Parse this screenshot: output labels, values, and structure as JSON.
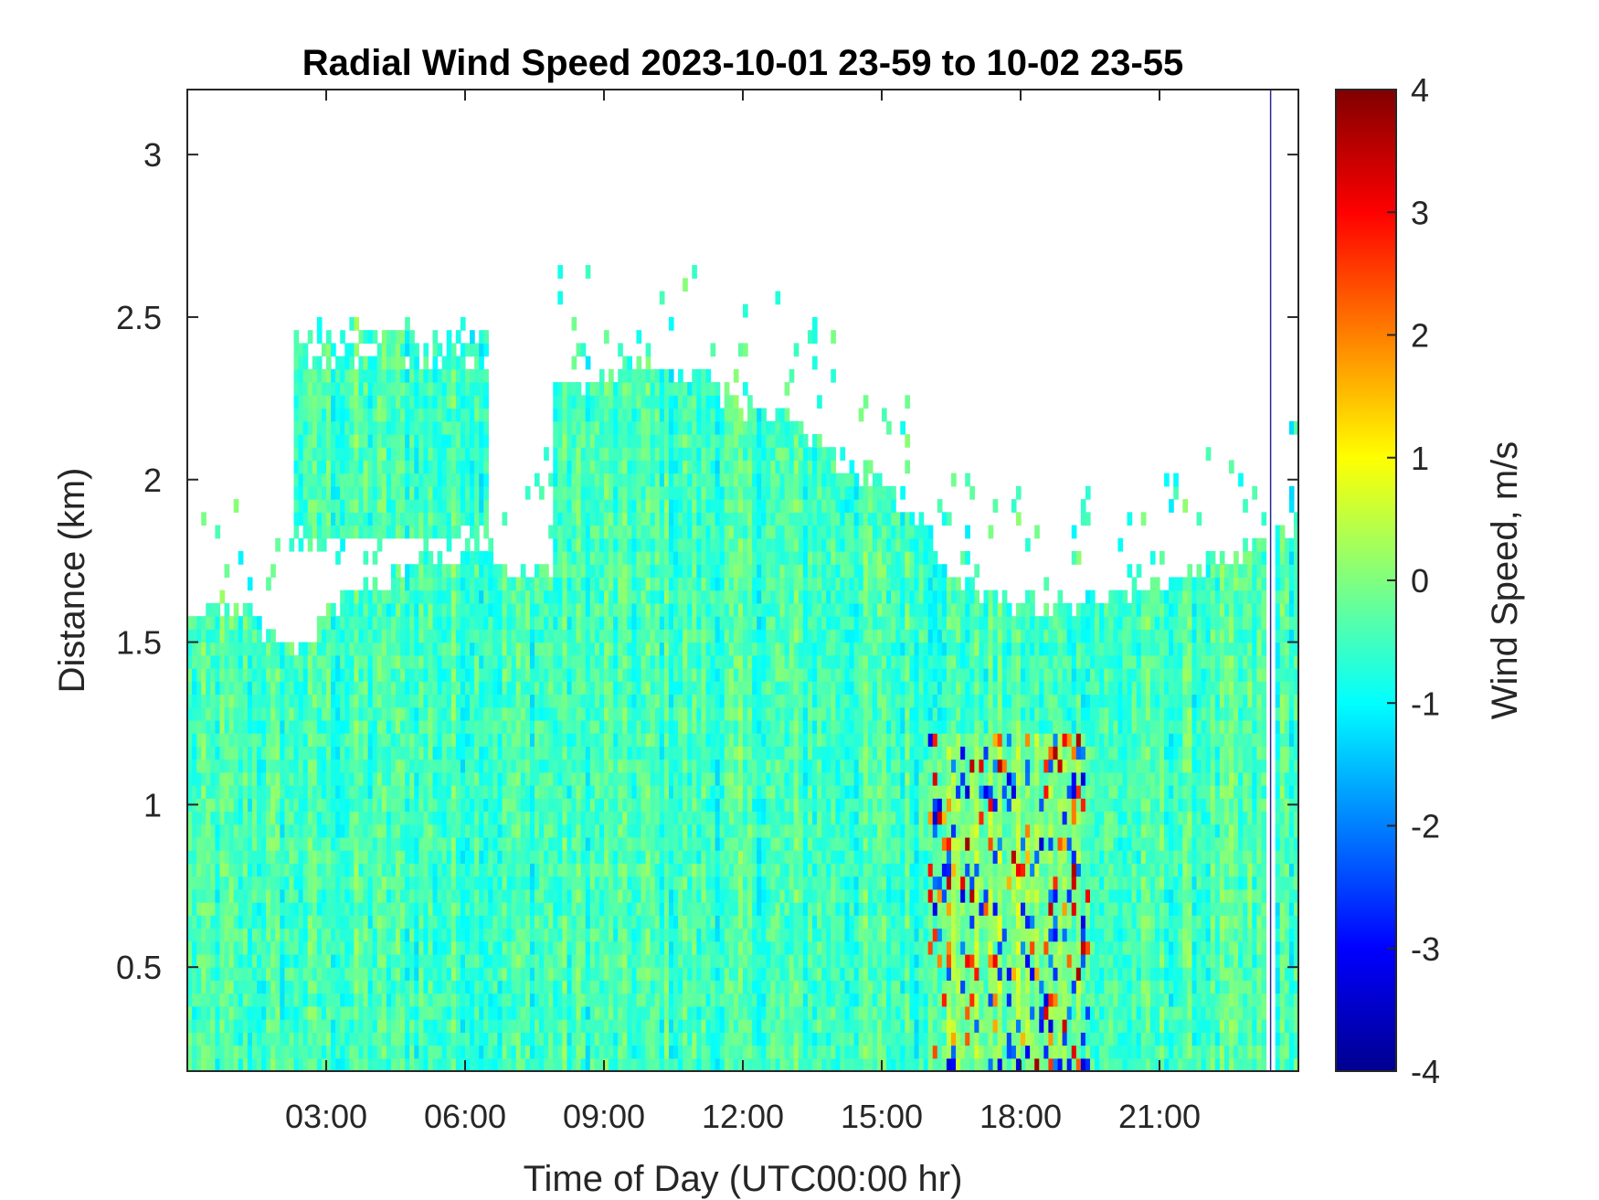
{
  "chart_data": {
    "type": "heatmap",
    "title": "Radial Wind Speed 2023-10-01 23-59 to 10-02 23-55",
    "xlabel": "Time of Day (UTC00:00 hr)",
    "ylabel": "Distance (km)",
    "colorbar_label": "Wind Speed, m/s",
    "xlim": [
      0,
      24
    ],
    "ylim": [
      0.18,
      3.2
    ],
    "clim": [
      -4,
      4
    ],
    "x_ticks": [
      3,
      6,
      9,
      12,
      15,
      18,
      21
    ],
    "x_tick_labels": [
      "03:00",
      "06:00",
      "09:00",
      "12:00",
      "15:00",
      "18:00",
      "21:00"
    ],
    "y_ticks": [
      0.5,
      1,
      1.5,
      2,
      2.5,
      3
    ],
    "y_tick_labels": [
      "0.5",
      "1",
      "1.5",
      "2",
      "2.5",
      "3"
    ],
    "colorbar_ticks": [
      4,
      3,
      2,
      1,
      0,
      -1,
      -2,
      -3,
      -4
    ],
    "colorbar_tick_labels": [
      "4",
      "3",
      "2",
      "1",
      "0",
      "-1",
      "-2",
      "-3",
      "-4"
    ],
    "colormap": "jet",
    "colormap_stops": [
      "#00008f",
      "#0000ff",
      "#00ffff",
      "#ffff00",
      "#ff0000",
      "#800000"
    ],
    "grid": false,
    "data_top_profile_km": [
      [
        0,
        1.58
      ],
      [
        1,
        1.58
      ],
      [
        1.8,
        1.52
      ],
      [
        2.3,
        1.45
      ],
      [
        3,
        1.58
      ],
      [
        4,
        1.65
      ],
      [
        5,
        1.72
      ],
      [
        6,
        1.75
      ],
      [
        6.6,
        1.76
      ],
      [
        6.6,
        1.7
      ],
      [
        7.9,
        1.7
      ],
      [
        7.9,
        2.25
      ],
      [
        9,
        2.3
      ],
      [
        10,
        2.35
      ],
      [
        11,
        2.3
      ],
      [
        12,
        2.2
      ],
      [
        13,
        2.15
      ],
      [
        14,
        2.05
      ],
      [
        15,
        1.95
      ],
      [
        15.8,
        1.85
      ],
      [
        16.5,
        1.7
      ],
      [
        17,
        1.62
      ],
      [
        18,
        1.6
      ],
      [
        19,
        1.6
      ],
      [
        20,
        1.62
      ],
      [
        21,
        1.65
      ],
      [
        22,
        1.7
      ],
      [
        23,
        1.78
      ],
      [
        24,
        1.85
      ]
    ],
    "upper_layer": {
      "x_range": [
        2.3,
        6.5
      ],
      "base_km": [
        1.8,
        1.9
      ],
      "top_km": 2.4
    },
    "dominant_speed_m_s": -0.5,
    "positive_burst_x_range": [
      16,
      19.5
    ],
    "missing_column_x": 23.4
  }
}
